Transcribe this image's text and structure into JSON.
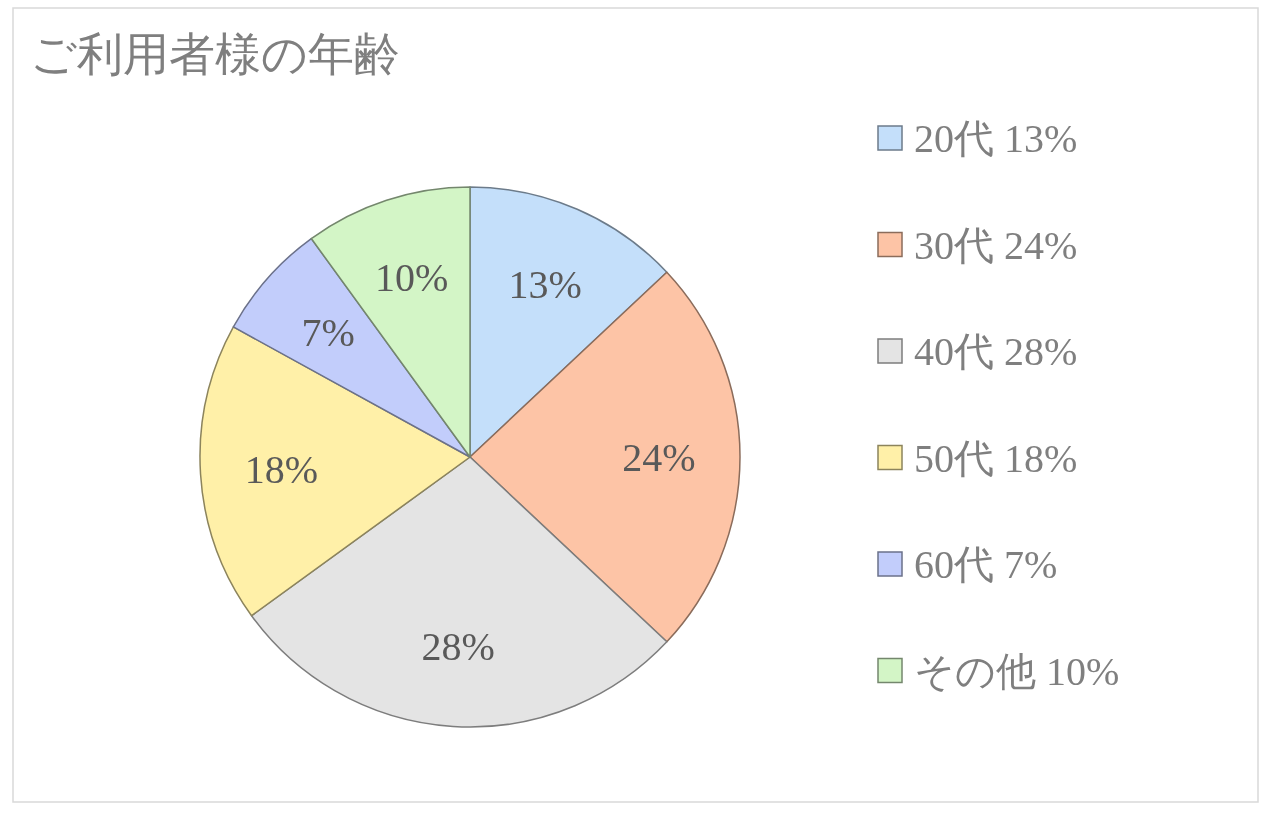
{
  "chart_data": {
    "type": "pie",
    "title": "ご利用者様の年齢",
    "categories": [
      "20代 13%",
      "30代 24%",
      "40代 28%",
      "50代 18%",
      "60代 7%",
      "その他 10%"
    ],
    "values": [
      13,
      24,
      28,
      18,
      7,
      10
    ],
    "colors": [
      "#c4dffa",
      "#fdc4a6",
      "#e4e4e4",
      "#fff0a8",
      "#c2cdfb",
      "#d3f5c6"
    ],
    "value_labels": [
      "13%",
      "24%",
      "28%",
      "18%",
      "7%",
      "10%"
    ],
    "legend": "right"
  }
}
